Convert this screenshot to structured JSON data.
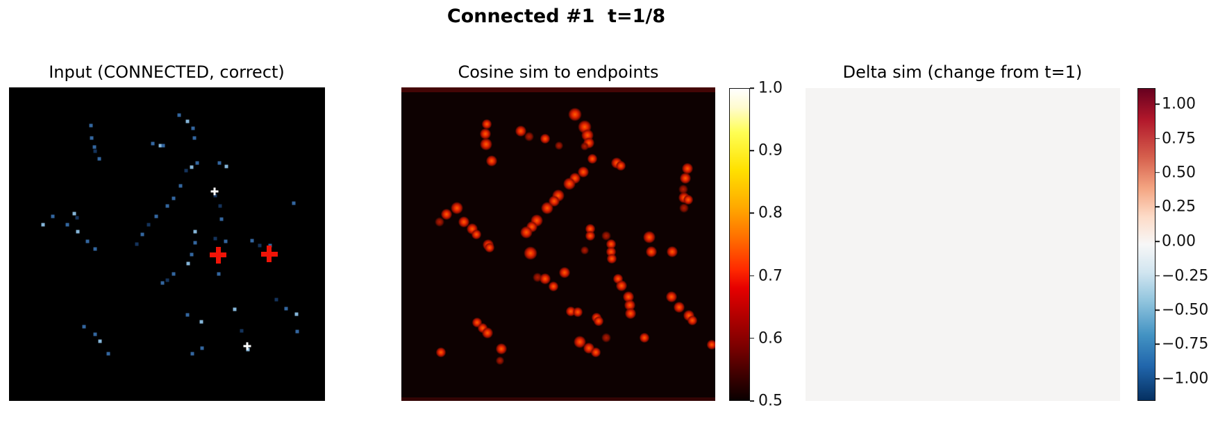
{
  "figure": {
    "suptitle": "Connected #1  t=1/8",
    "background": "#ffffff"
  },
  "panels": [
    {
      "title": "Input (CONNECTED, correct)"
    },
    {
      "title": "Cosine sim to endpoints"
    },
    {
      "title": "Delta sim (change from t=1)"
    }
  ],
  "chart_data": [
    {
      "id": "input",
      "type": "heatmap",
      "title": "Input (CONNECTED, correct)",
      "description": "Sparse input points (blue pixels) on black; two red '+' endpoint markers and two small white '+' markers",
      "background": "#000000",
      "point_colors": [
        "#14335c",
        "#33669f",
        "#85b5d8"
      ],
      "points": [
        [
          25.9,
          12.2,
          1
        ],
        [
          26.2,
          16.2,
          1
        ],
        [
          27.0,
          19.0,
          1
        ],
        [
          27.3,
          20.4,
          0
        ],
        [
          28.6,
          22.8,
          1
        ],
        [
          53.8,
          8.8,
          1
        ],
        [
          56.5,
          10.8,
          2
        ],
        [
          58.2,
          13.1,
          1
        ],
        [
          58.7,
          16.2,
          1
        ],
        [
          45.5,
          17.9,
          1
        ],
        [
          47.9,
          18.6,
          2
        ],
        [
          48.8,
          18.6,
          1
        ],
        [
          66.6,
          24.1,
          1
        ],
        [
          68.8,
          25.2,
          2
        ],
        [
          59.6,
          24.1,
          1
        ],
        [
          57.8,
          25.4,
          2
        ],
        [
          56.0,
          26.5,
          0
        ],
        [
          54.3,
          31.4,
          1
        ],
        [
          65.3,
          34.5,
          0
        ],
        [
          52.1,
          35.4,
          1
        ],
        [
          50.1,
          37.8,
          1
        ],
        [
          66.8,
          37.8,
          0
        ],
        [
          46.6,
          41.2,
          1
        ],
        [
          67.3,
          42.0,
          1
        ],
        [
          44.2,
          43.8,
          0
        ],
        [
          13.8,
          41.2,
          1
        ],
        [
          20.7,
          40.3,
          2
        ],
        [
          21.5,
          41.6,
          0
        ],
        [
          10.8,
          43.8,
          2
        ],
        [
          18.5,
          43.8,
          1
        ],
        [
          21.8,
          46.0,
          2
        ],
        [
          42.2,
          46.9,
          1
        ],
        [
          24.8,
          49.1,
          1
        ],
        [
          40.4,
          50.0,
          0
        ],
        [
          27.3,
          51.5,
          1
        ],
        [
          58.9,
          46.0,
          2
        ],
        [
          58.9,
          49.6,
          1
        ],
        [
          65.3,
          48.2,
          0
        ],
        [
          68.6,
          49.1,
          1
        ],
        [
          76.9,
          48.9,
          1
        ],
        [
          79.3,
          50.4,
          0
        ],
        [
          82.6,
          50.4,
          1
        ],
        [
          57.8,
          53.3,
          1
        ],
        [
          56.7,
          56.2,
          2
        ],
        [
          66.4,
          59.5,
          1
        ],
        [
          52.1,
          59.5,
          1
        ],
        [
          48.6,
          62.4,
          1
        ],
        [
          50.1,
          61.5,
          0
        ],
        [
          84.6,
          67.7,
          0
        ],
        [
          87.7,
          70.6,
          1
        ],
        [
          71.4,
          70.8,
          2
        ],
        [
          56.5,
          72.6,
          1
        ],
        [
          60.9,
          74.8,
          2
        ],
        [
          23.7,
          76.3,
          1
        ],
        [
          27.3,
          78.8,
          1
        ],
        [
          28.8,
          81.0,
          2
        ],
        [
          31.4,
          85.0,
          1
        ],
        [
          58.0,
          85.0,
          1
        ],
        [
          61.1,
          83.2,
          1
        ],
        [
          75.6,
          83.6,
          2
        ],
        [
          90.1,
          36.9,
          1
        ],
        [
          91.0,
          72.3,
          2
        ],
        [
          91.2,
          77.9,
          1
        ],
        [
          73.6,
          77.7,
          0
        ]
      ],
      "markers": [
        {
          "name": "endpoint-marker-red-1",
          "x": 66.2,
          "y": 53.5,
          "color": "#f01408",
          "size": 24,
          "thick": 7
        },
        {
          "name": "endpoint-marker-red-2",
          "x": 82.4,
          "y": 53.1,
          "color": "#f01408",
          "size": 24,
          "thick": 7
        },
        {
          "name": "marker-white-1",
          "x": 65.1,
          "y": 33.2,
          "color": "#ffffff",
          "size": 11,
          "thick": 3
        },
        {
          "name": "marker-white-2",
          "x": 75.4,
          "y": 82.5,
          "color": "#ffffff",
          "size": 11,
          "thick": 3
        }
      ]
    },
    {
      "id": "cosine_sim",
      "type": "heatmap",
      "title": "Cosine sim to endpoints",
      "description": "Cosine similarity map, hot colormap, background near 0.5 (black), bright red/orange blobs along point trails",
      "background": "#0d0101",
      "edge_strips": {
        "top_color": "#440606",
        "top_h": 7,
        "bottom_color": "#330404",
        "bottom_h": 5
      },
      "blobs": [
        [
          27.2,
          11.7,
          9,
          2
        ],
        [
          26.8,
          14.8,
          10,
          2
        ],
        [
          27.0,
          18.1,
          11,
          2
        ],
        [
          27.4,
          21.5,
          16,
          3
        ],
        [
          28.8,
          23.5,
          10,
          2
        ],
        [
          55.3,
          8.6,
          12,
          2
        ],
        [
          57.1,
          10.4,
          14,
          3
        ],
        [
          58.4,
          12.6,
          12,
          2
        ],
        [
          59.3,
          15.3,
          11,
          2
        ],
        [
          59.7,
          17.7,
          10,
          2
        ],
        [
          38.1,
          13.9,
          10,
          2
        ],
        [
          40.7,
          15.7,
          9,
          1
        ],
        [
          45.8,
          16.4,
          9,
          2
        ],
        [
          50.2,
          18.6,
          8,
          1
        ],
        [
          58.4,
          18.8,
          8,
          1
        ],
        [
          60.8,
          22.8,
          9,
          2
        ],
        [
          68.6,
          24.1,
          10,
          2
        ],
        [
          69.9,
          25.0,
          9,
          2
        ],
        [
          58.0,
          27.0,
          10,
          2
        ],
        [
          55.3,
          29.0,
          10,
          2
        ],
        [
          53.5,
          30.8,
          11,
          2
        ],
        [
          51.8,
          32.5,
          11,
          3
        ],
        [
          50.0,
          34.5,
          11,
          2
        ],
        [
          48.7,
          36.3,
          10,
          2
        ],
        [
          46.5,
          38.5,
          11,
          2
        ],
        [
          44.9,
          40.5,
          11,
          3
        ],
        [
          43.1,
          42.5,
          11,
          2
        ],
        [
          41.6,
          44.5,
          10,
          2
        ],
        [
          39.8,
          46.2,
          11,
          2
        ],
        [
          41.2,
          48.7,
          15,
          3
        ],
        [
          41.2,
          52.9,
          12,
          2
        ],
        [
          17.7,
          38.5,
          11,
          2
        ],
        [
          14.4,
          40.5,
          10,
          2
        ],
        [
          12.2,
          42.9,
          9,
          1
        ],
        [
          17.7,
          42.0,
          14,
          3
        ],
        [
          19.9,
          42.9,
          10,
          2
        ],
        [
          22.6,
          45.1,
          10,
          2
        ],
        [
          23.9,
          46.9,
          9,
          2
        ],
        [
          27.7,
          50.2,
          10,
          2
        ],
        [
          28.1,
          51.1,
          9,
          2
        ],
        [
          60.2,
          45.1,
          9,
          2
        ],
        [
          60.2,
          47.3,
          9,
          2
        ],
        [
          65.3,
          47.3,
          9,
          1
        ],
        [
          66.8,
          50.0,
          9,
          2
        ],
        [
          66.8,
          52.4,
          9,
          2
        ],
        [
          67.0,
          54.6,
          9,
          2
        ],
        [
          58.4,
          52.0,
          8,
          1
        ],
        [
          52.0,
          59.1,
          10,
          2
        ],
        [
          43.4,
          60.6,
          9,
          1
        ],
        [
          45.8,
          61.1,
          10,
          2
        ],
        [
          50.9,
          62.4,
          11,
          3
        ],
        [
          48.5,
          63.5,
          9,
          2
        ],
        [
          69.0,
          61.1,
          9,
          2
        ],
        [
          70.1,
          63.3,
          10,
          2
        ],
        [
          72.3,
          66.8,
          10,
          2
        ],
        [
          72.8,
          69.5,
          10,
          2
        ],
        [
          73.0,
          72.1,
          10,
          2
        ],
        [
          54.0,
          71.5,
          9,
          2
        ],
        [
          56.2,
          71.7,
          9,
          2
        ],
        [
          62.2,
          73.5,
          9,
          2
        ],
        [
          62.8,
          74.6,
          9,
          2
        ],
        [
          24.1,
          75.0,
          9,
          2
        ],
        [
          25.9,
          76.8,
          9,
          2
        ],
        [
          27.4,
          78.3,
          10,
          2
        ],
        [
          30.3,
          81.0,
          11,
          3
        ],
        [
          31.9,
          83.4,
          10,
          2
        ],
        [
          56.9,
          81.2,
          11,
          2
        ],
        [
          59.7,
          83.2,
          10,
          2
        ],
        [
          61.9,
          84.5,
          9,
          2
        ],
        [
          65.3,
          79.9,
          9,
          1
        ],
        [
          91.2,
          25.9,
          10,
          2
        ],
        [
          90.5,
          29.0,
          10,
          2
        ],
        [
          89.8,
          32.5,
          9,
          1
        ],
        [
          90.0,
          35.2,
          10,
          2
        ],
        [
          91.4,
          35.8,
          9,
          2
        ],
        [
          90.0,
          38.5,
          9,
          1
        ],
        [
          79.0,
          47.8,
          11,
          2
        ],
        [
          83.0,
          49.6,
          16,
          3
        ],
        [
          79.6,
          52.4,
          10,
          2
        ],
        [
          86.3,
          52.4,
          10,
          2
        ],
        [
          83.0,
          54.4,
          11,
          3
        ],
        [
          86.1,
          66.8,
          10,
          2
        ],
        [
          88.5,
          70.1,
          10,
          2
        ],
        [
          91.6,
          72.8,
          10,
          2
        ],
        [
          92.7,
          74.3,
          9,
          2
        ],
        [
          79.0,
          78.8,
          11,
          3
        ],
        [
          77.4,
          79.9,
          9,
          2
        ],
        [
          12.6,
          84.5,
          9,
          2
        ],
        [
          33.0,
          85.4,
          12,
          3
        ],
        [
          31.4,
          87.2,
          8,
          1
        ],
        [
          98.9,
          82.1,
          9,
          2
        ]
      ],
      "colorbar": {
        "colormap": "hot",
        "vmin": 0.5,
        "vmax": 1.0,
        "tick_values": [
          1.0,
          0.9,
          0.8,
          0.7,
          0.6,
          0.5
        ],
        "ticks": [
          {
            "label": "1.0",
            "pos": 0
          },
          {
            "label": "0.9",
            "pos": 20
          },
          {
            "label": "0.8",
            "pos": 40
          },
          {
            "label": "0.7",
            "pos": 60
          },
          {
            "label": "0.6",
            "pos": 80
          },
          {
            "label": "0.5",
            "pos": 100
          }
        ],
        "gradient": [
          [
            "#ffffff",
            0
          ],
          [
            "#fffbcf",
            6
          ],
          [
            "#ffff54",
            14
          ],
          [
            "#ffe100",
            26
          ],
          [
            "#ffa900",
            38
          ],
          [
            "#ff6e00",
            48
          ],
          [
            "#ff2a00",
            58
          ],
          [
            "#e60000",
            64
          ],
          [
            "#b80000",
            72
          ],
          [
            "#7a0000",
            83
          ],
          [
            "#3d0000",
            92
          ],
          [
            "#0a0000",
            100
          ]
        ]
      }
    },
    {
      "id": "delta_sim",
      "type": "heatmap",
      "title": "Delta sim (change from t=1)",
      "description": "Delta similarity map, uniformly ~0 (no change), RdBu_r colormap",
      "uniform_value": 0.0,
      "background": "#f5f4f3",
      "colorbar": {
        "colormap": "RdBu_r",
        "vmin": -1.0,
        "vmax": 1.0,
        "tick_values": [
          1.0,
          0.75,
          0.5,
          0.25,
          0.0,
          -0.25,
          -0.5,
          -0.75,
          -1.0
        ],
        "ticks": [
          {
            "label": "1.00",
            "pos": 5.1
          },
          {
            "label": "0.75",
            "pos": 16.1
          },
          {
            "label": "0.50",
            "pos": 27.0
          },
          {
            "label": "0.25",
            "pos": 38.0
          },
          {
            "label": "0.00",
            "pos": 49.0
          },
          {
            "label": "−0.25",
            "pos": 60.0
          },
          {
            "label": "−0.50",
            "pos": 71.0
          },
          {
            "label": "−0.75",
            "pos": 81.9
          },
          {
            "label": "−1.00",
            "pos": 92.9
          }
        ],
        "gradient": [
          [
            "#67001f",
            0
          ],
          [
            "#b2182b",
            10
          ],
          [
            "#d6604d",
            22
          ],
          [
            "#f4a582",
            32
          ],
          [
            "#fddbc7",
            41
          ],
          [
            "#f7f7f7",
            50
          ],
          [
            "#d1e5f0",
            59
          ],
          [
            "#92c5de",
            68
          ],
          [
            "#4393c3",
            79
          ],
          [
            "#2166ac",
            89
          ],
          [
            "#053061",
            100
          ]
        ]
      }
    }
  ]
}
